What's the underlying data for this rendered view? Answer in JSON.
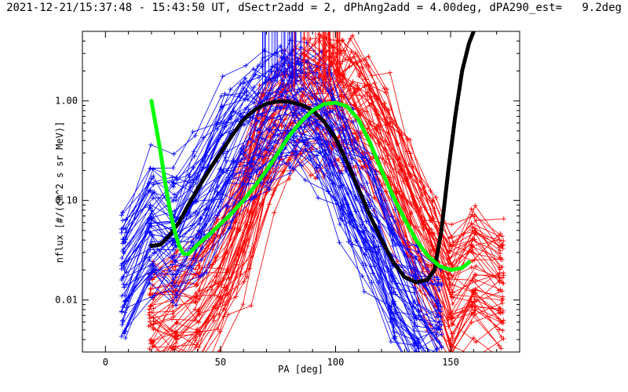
{
  "chart_data": {
    "type": "line",
    "title": "2021-12-21/15:37:48 - 15:43:50 UT, dSectr2add = 2, dPhAng2add = 4.00deg, dPA290_est=   9.2deg",
    "xlabel": "PA [deg]",
    "ylabel": "nflux [#/(cm^2 s sr MeV)]",
    "xlim": [
      -10,
      180
    ],
    "ylim": [
      0.003,
      5.0
    ],
    "yscale": "log",
    "x_ticks": [
      0,
      50,
      100,
      150
    ],
    "x_tick_labels": [
      "0",
      "50",
      "100",
      "150"
    ],
    "y_ticks": [
      0.01,
      0.1,
      1.0
    ],
    "y_tick_labels": [
      "0.01",
      "0.10",
      "1.00"
    ],
    "grid": false,
    "legend": "none",
    "colors": {
      "blue": "#0000ff",
      "red": "#ff0000",
      "black": "#000000",
      "green": "#00ff00"
    },
    "blue_sample": {
      "x": [
        8,
        20,
        30,
        40,
        52,
        62,
        70,
        78,
        85,
        95,
        105,
        115,
        125,
        135,
        145
      ],
      "y_center": [
        0.02,
        0.06,
        0.05,
        0.1,
        0.3,
        0.5,
        0.75,
        0.95,
        0.85,
        0.55,
        0.2,
        0.07,
        0.02,
        0.008,
        0.005
      ]
    },
    "red_sample": {
      "x": [
        20,
        30,
        40,
        50,
        60,
        70,
        80,
        88,
        95,
        100,
        105,
        112,
        120,
        130,
        140,
        150,
        160,
        172
      ],
      "y_center": [
        0.005,
        0.006,
        0.008,
        0.015,
        0.05,
        0.3,
        0.75,
        0.9,
        0.95,
        0.9,
        0.85,
        0.7,
        0.35,
        0.1,
        0.03,
        0.01,
        0.015,
        0.012
      ]
    },
    "series": [
      {
        "color": "black",
        "x": [
          20,
          24,
          28,
          32,
          36,
          40,
          45,
          50,
          55,
          60,
          65,
          70,
          75,
          80,
          85,
          90,
          95,
          100,
          105,
          110,
          115,
          120,
          125,
          130,
          135,
          140,
          143,
          146,
          149,
          152,
          155,
          158,
          160
        ],
        "y": [
          0.035,
          0.036,
          0.045,
          0.06,
          0.09,
          0.13,
          0.2,
          0.3,
          0.45,
          0.65,
          0.82,
          0.94,
          0.99,
          0.98,
          0.92,
          0.8,
          0.62,
          0.42,
          0.24,
          0.13,
          0.07,
          0.04,
          0.024,
          0.017,
          0.015,
          0.016,
          0.02,
          0.05,
          0.2,
          0.7,
          2.0,
          3.8,
          5.0
        ]
      },
      {
        "color": "green",
        "x": [
          20,
          22,
          24,
          26,
          28,
          30,
          32,
          34,
          36,
          38,
          40,
          45,
          50,
          55,
          60,
          65,
          70,
          75,
          80,
          85,
          90,
          95,
          100,
          105,
          110,
          115,
          120,
          125,
          130,
          135,
          140,
          145,
          150,
          155,
          158
        ],
        "y": [
          1.0,
          0.55,
          0.3,
          0.15,
          0.08,
          0.05,
          0.035,
          0.029,
          0.029,
          0.032,
          0.036,
          0.045,
          0.058,
          0.075,
          0.1,
          0.14,
          0.2,
          0.3,
          0.45,
          0.62,
          0.8,
          0.93,
          0.96,
          0.88,
          0.65,
          0.38,
          0.2,
          0.11,
          0.065,
          0.04,
          0.028,
          0.022,
          0.02,
          0.021,
          0.024
        ]
      }
    ]
  }
}
